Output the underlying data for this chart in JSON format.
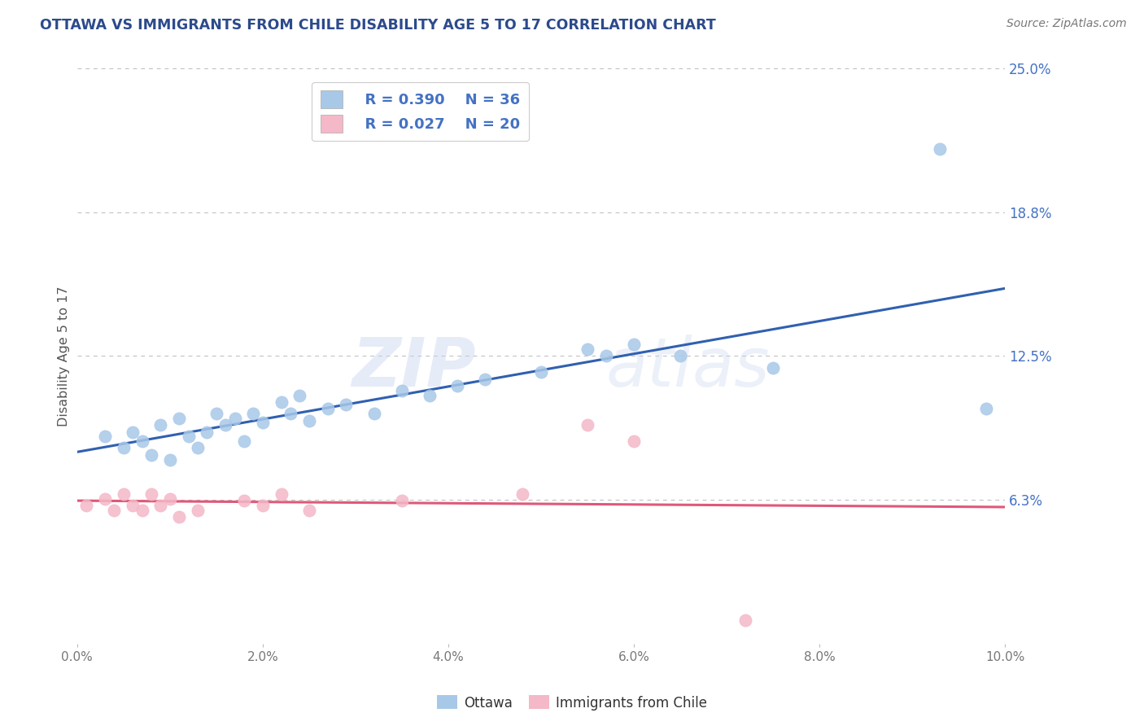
{
  "title": "OTTAWA VS IMMIGRANTS FROM CHILE DISABILITY AGE 5 TO 17 CORRELATION CHART",
  "source": "Source: ZipAtlas.com",
  "ylabel": "Disability Age 5 to 17",
  "xlim": [
    0.0,
    0.1
  ],
  "ylim": [
    0.0,
    0.25
  ],
  "yticks": [
    0.0,
    0.0625,
    0.125,
    0.1875,
    0.25
  ],
  "ytick_labels": [
    "",
    "6.3%",
    "12.5%",
    "18.8%",
    "25.0%"
  ],
  "xticks": [
    0.0,
    0.02,
    0.04,
    0.06,
    0.08,
    0.1
  ],
  "xtick_labels": [
    "0.0%",
    "2.0%",
    "4.0%",
    "6.0%",
    "8.0%",
    "10.0%"
  ],
  "ottawa_color": "#a8c8e8",
  "chile_color": "#f4b8c8",
  "ottawa_line_color": "#3060b0",
  "chile_line_color": "#e05878",
  "background_color": "#ffffff",
  "grid_color": "#bbbbbb",
  "legend_r1": "R = 0.390",
  "legend_n1": "N = 36",
  "legend_r2": "R = 0.027",
  "legend_n2": "N = 20",
  "title_color": "#2c4a8c",
  "source_color": "#777777",
  "tick_color": "#777777",
  "ylabel_color": "#555555",
  "ottawa_x": [
    0.003,
    0.005,
    0.006,
    0.007,
    0.008,
    0.009,
    0.01,
    0.011,
    0.012,
    0.013,
    0.014,
    0.015,
    0.016,
    0.017,
    0.018,
    0.019,
    0.02,
    0.022,
    0.023,
    0.024,
    0.025,
    0.027,
    0.029,
    0.032,
    0.035,
    0.038,
    0.041,
    0.044,
    0.05,
    0.055,
    0.057,
    0.06,
    0.065,
    0.075,
    0.093,
    0.098
  ],
  "ottawa_y": [
    0.09,
    0.085,
    0.092,
    0.088,
    0.082,
    0.095,
    0.08,
    0.098,
    0.09,
    0.085,
    0.092,
    0.1,
    0.095,
    0.098,
    0.088,
    0.1,
    0.096,
    0.105,
    0.1,
    0.108,
    0.097,
    0.102,
    0.104,
    0.1,
    0.11,
    0.108,
    0.112,
    0.115,
    0.118,
    0.128,
    0.125,
    0.13,
    0.125,
    0.12,
    0.215,
    0.102
  ],
  "chile_x": [
    0.001,
    0.003,
    0.004,
    0.005,
    0.006,
    0.007,
    0.008,
    0.009,
    0.01,
    0.011,
    0.013,
    0.018,
    0.02,
    0.022,
    0.025,
    0.035,
    0.048,
    0.055,
    0.06,
    0.072
  ],
  "chile_y": [
    0.06,
    0.063,
    0.058,
    0.065,
    0.06,
    0.058,
    0.065,
    0.06,
    0.063,
    0.055,
    0.058,
    0.062,
    0.06,
    0.065,
    0.058,
    0.062,
    0.065,
    0.095,
    0.088,
    0.01
  ]
}
